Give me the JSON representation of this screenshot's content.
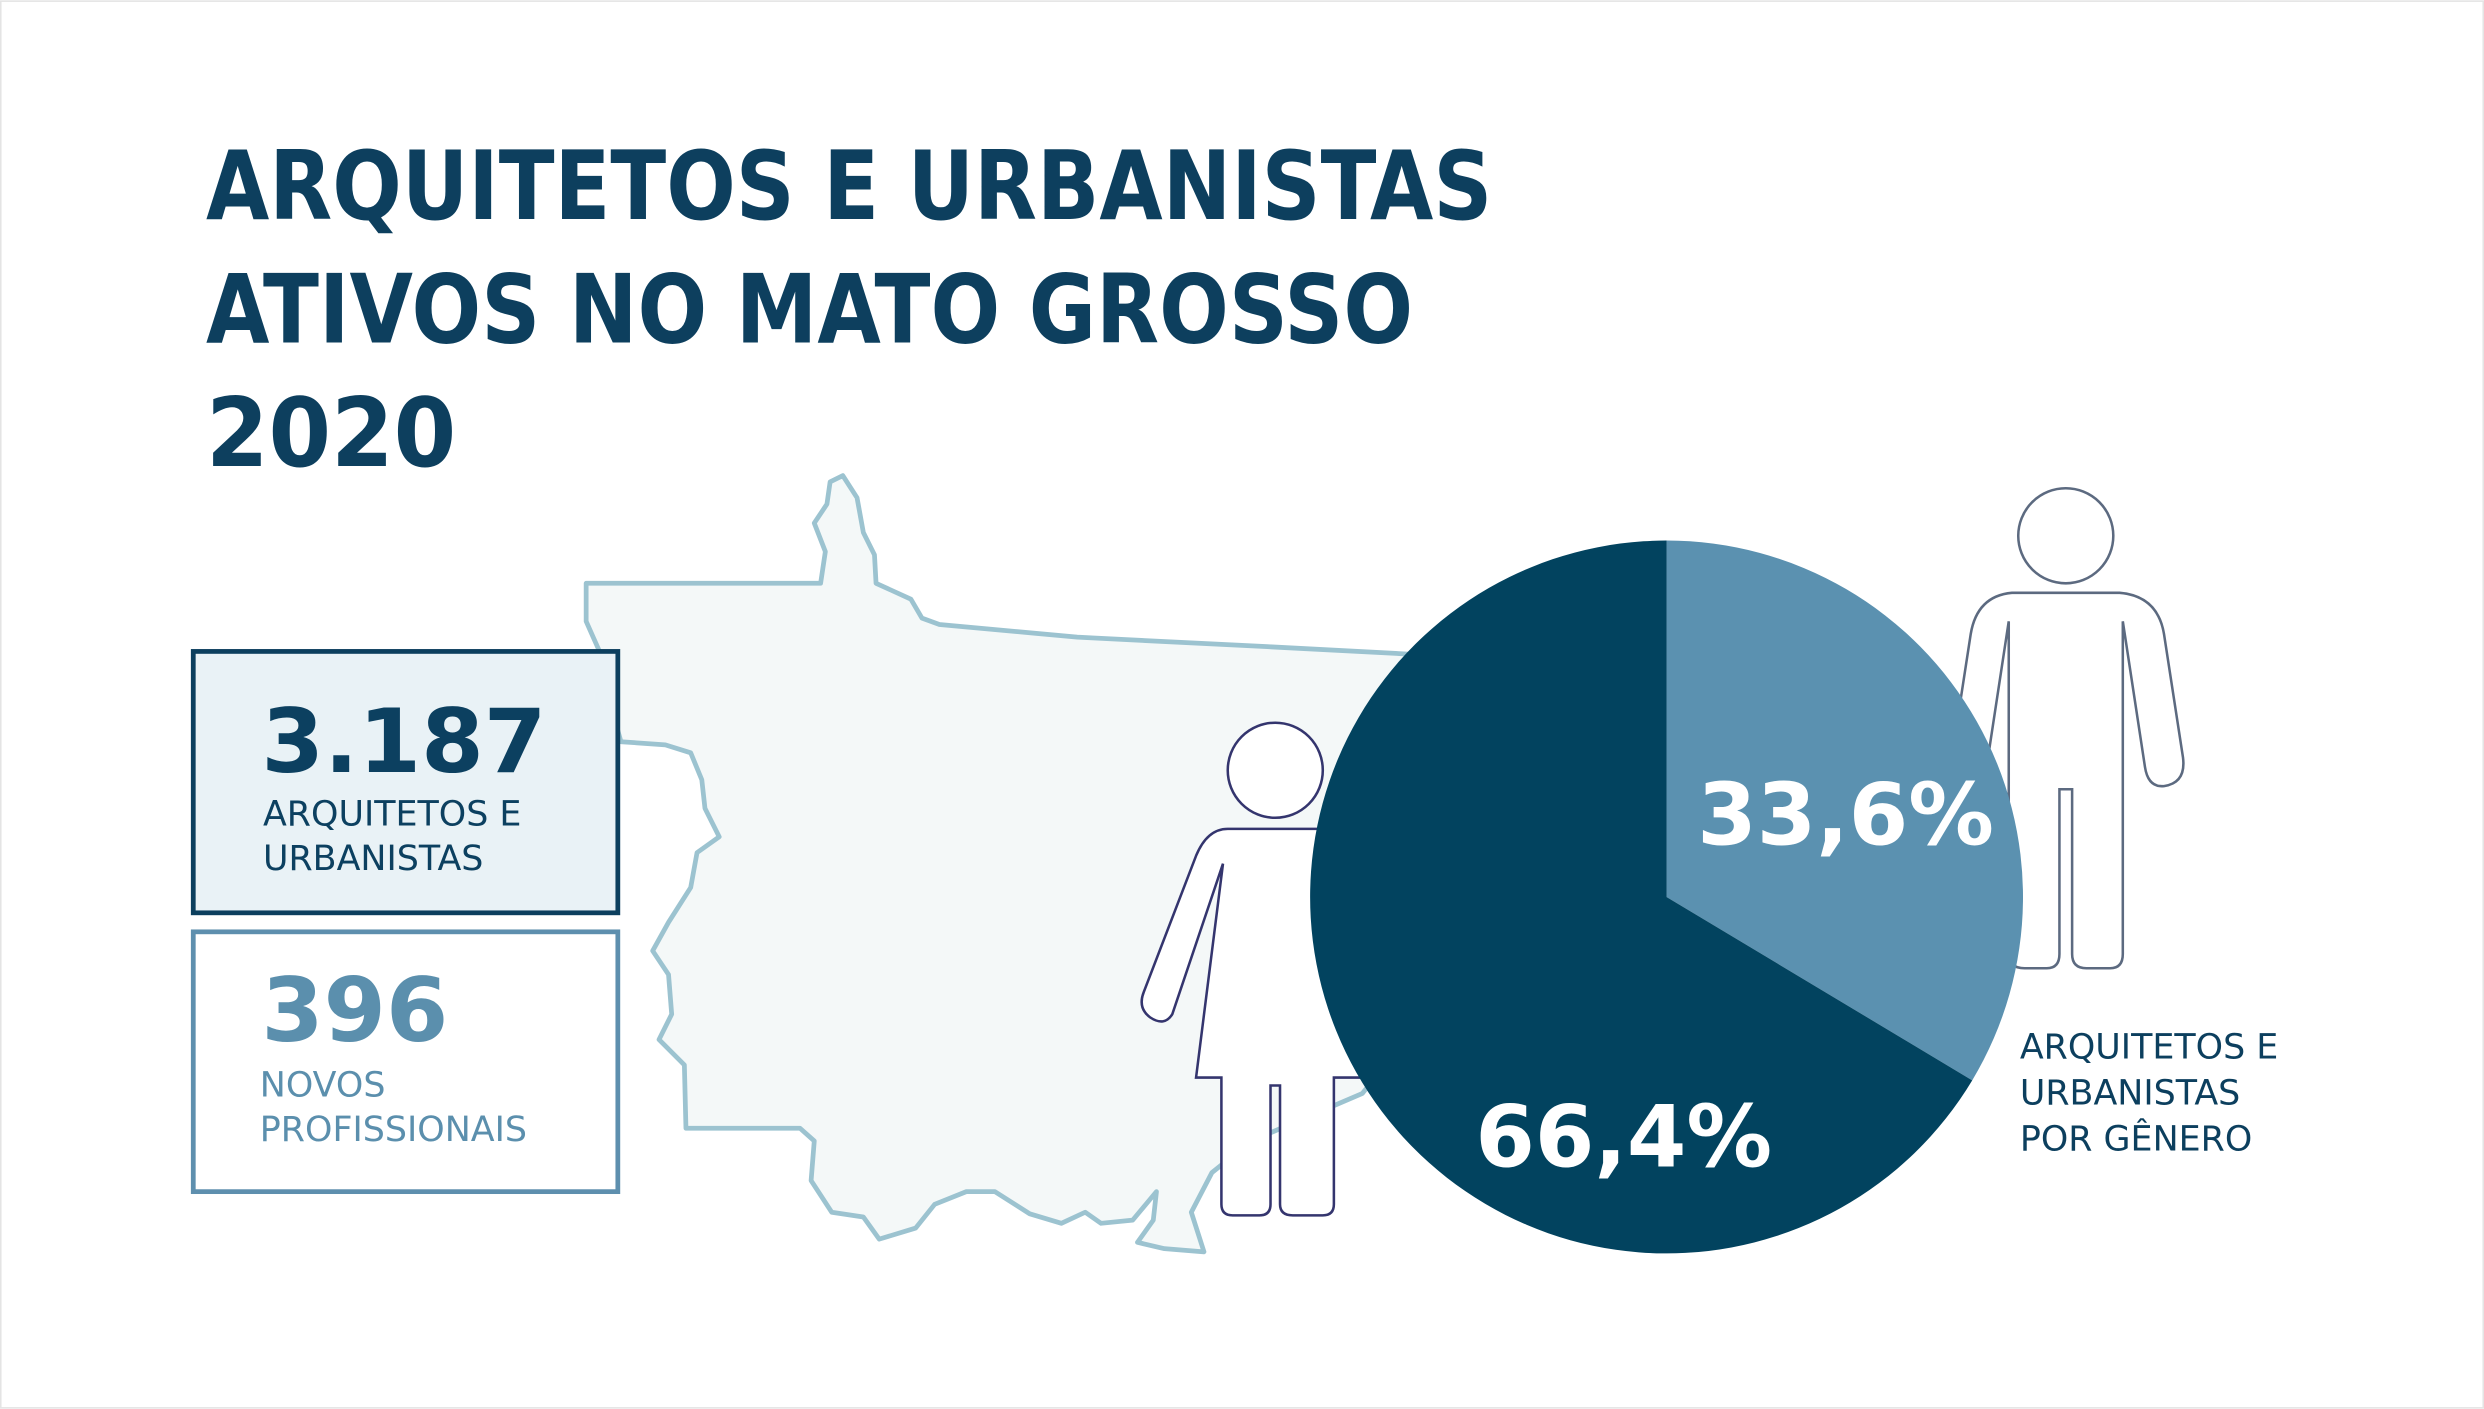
{
  "chart_data": {
    "type": "pie",
    "title": [
      "ARQUITETOS E URBANISTAS",
      "ATIVOS NO MATO GROSSO",
      "2020"
    ],
    "stats": [
      {
        "value": "3.187",
        "label": [
          "ARQUITETOS E",
          "URBANISTAS"
        ]
      },
      {
        "value": "396",
        "label": [
          "NOVOS",
          "PROFISSIONAIS"
        ]
      }
    ],
    "categories": [
      null,
      null
    ],
    "values": [
      33.6,
      66.4
    ],
    "value_labels": [
      "33,6%",
      "66,4%"
    ],
    "colors": [
      "#5b91b0",
      "#02435f"
    ],
    "caption": [
      "ARQUITETOS E",
      "URBANISTAS",
      "POR GÊNERO"
    ]
  }
}
